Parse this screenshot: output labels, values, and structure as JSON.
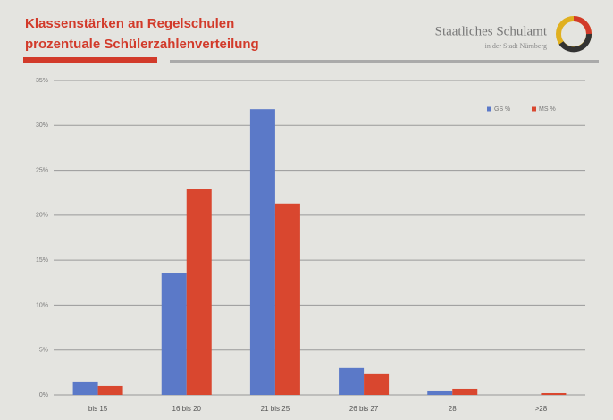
{
  "chart_data": {
    "type": "bar",
    "title": [
      "Klassenstärken an Regelschulen",
      "prozentuale Schülerzahlenverteilung"
    ],
    "logo": {
      "name": "Staatliches Schulamt",
      "subtitle": "in der Stadt Nürnberg"
    },
    "categories": [
      "bis 15",
      "16 bis 20",
      "21 bis 25",
      "26 bis 27",
      "28",
      ">28"
    ],
    "series": [
      {
        "name": "GS %",
        "color": "#5b79c8",
        "values": [
          1.5,
          13.6,
          31.8,
          3.0,
          0.5,
          0
        ]
      },
      {
        "name": "MS %",
        "color": "#d9472f",
        "values": [
          1,
          22.9,
          21.3,
          2.4,
          0.7,
          0.2
        ]
      }
    ],
    "ylim": [
      0,
      35
    ],
    "yticks": [
      {
        "value": 0,
        "label": "0%"
      },
      {
        "value": 5,
        "label": "5%"
      },
      {
        "value": 10,
        "label": "10%"
      },
      {
        "value": 15,
        "label": "15%"
      },
      {
        "value": 20,
        "label": "20%"
      },
      {
        "value": 25,
        "label": "25%"
      },
      {
        "value": 30,
        "label": "30%"
      },
      {
        "value": 35,
        "label": "35%"
      }
    ],
    "grid": true,
    "legend": "top-right"
  }
}
